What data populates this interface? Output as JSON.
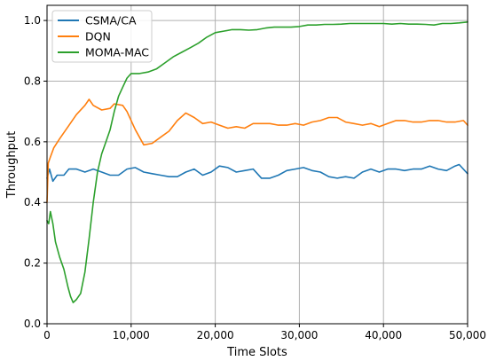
{
  "chart_data": {
    "type": "line",
    "xlabel": "Time Slots",
    "ylabel": "Throughput",
    "xlim": [
      0,
      50000
    ],
    "ylim": [
      0,
      1.05
    ],
    "xticks": [
      0,
      10000,
      20000,
      30000,
      40000,
      50000
    ],
    "xtick_labels": [
      "0",
      "10,000",
      "20,000",
      "30,000",
      "40,000",
      "50,000"
    ],
    "yticks": [
      0.0,
      0.2,
      0.4,
      0.6,
      0.8,
      1.0
    ],
    "ytick_labels": [
      "0.0",
      "0.2",
      "0.4",
      "0.6",
      "0.8",
      "1.0"
    ],
    "grid": true,
    "legend_position": "top-left",
    "series": [
      {
        "name": "CSMA/CA",
        "color": "#1f77b4",
        "points": [
          [
            0,
            0.48
          ],
          [
            300,
            0.51
          ],
          [
            700,
            0.47
          ],
          [
            1200,
            0.49
          ],
          [
            2000,
            0.49
          ],
          [
            2600,
            0.51
          ],
          [
            3500,
            0.51
          ],
          [
            4500,
            0.5
          ],
          [
            5500,
            0.51
          ],
          [
            6500,
            0.5
          ],
          [
            7500,
            0.49
          ],
          [
            8500,
            0.49
          ],
          [
            9500,
            0.51
          ],
          [
            10500,
            0.515
          ],
          [
            11500,
            0.5
          ],
          [
            12500,
            0.495
          ],
          [
            13500,
            0.49
          ],
          [
            14500,
            0.485
          ],
          [
            15500,
            0.485
          ],
          [
            16500,
            0.5
          ],
          [
            17500,
            0.51
          ],
          [
            18500,
            0.49
          ],
          [
            19500,
            0.5
          ],
          [
            20500,
            0.52
          ],
          [
            21500,
            0.515
          ],
          [
            22500,
            0.5
          ],
          [
            23500,
            0.505
          ],
          [
            24500,
            0.51
          ],
          [
            25500,
            0.48
          ],
          [
            26500,
            0.48
          ],
          [
            27500,
            0.49
          ],
          [
            28500,
            0.505
          ],
          [
            29500,
            0.51
          ],
          [
            30500,
            0.515
          ],
          [
            31500,
            0.505
          ],
          [
            32500,
            0.5
          ],
          [
            33500,
            0.485
          ],
          [
            34500,
            0.48
          ],
          [
            35500,
            0.485
          ],
          [
            36500,
            0.48
          ],
          [
            37500,
            0.5
          ],
          [
            38500,
            0.51
          ],
          [
            39500,
            0.5
          ],
          [
            40500,
            0.51
          ],
          [
            41500,
            0.51
          ],
          [
            42500,
            0.505
          ],
          [
            43500,
            0.51
          ],
          [
            44500,
            0.51
          ],
          [
            45500,
            0.52
          ],
          [
            46500,
            0.51
          ],
          [
            47500,
            0.505
          ],
          [
            48500,
            0.52
          ],
          [
            49000,
            0.525
          ],
          [
            50000,
            0.495
          ]
        ]
      },
      {
        "name": "DQN",
        "color": "#ff7f0e",
        "points": [
          [
            0,
            0.4
          ],
          [
            150,
            0.53
          ],
          [
            400,
            0.55
          ],
          [
            800,
            0.58
          ],
          [
            1500,
            0.61
          ],
          [
            2500,
            0.65
          ],
          [
            3500,
            0.69
          ],
          [
            4500,
            0.72
          ],
          [
            5000,
            0.74
          ],
          [
            5500,
            0.72
          ],
          [
            6500,
            0.705
          ],
          [
            7500,
            0.71
          ],
          [
            8000,
            0.725
          ],
          [
            9000,
            0.72
          ],
          [
            9500,
            0.7
          ],
          [
            10500,
            0.64
          ],
          [
            11500,
            0.59
          ],
          [
            12500,
            0.595
          ],
          [
            13500,
            0.615
          ],
          [
            14500,
            0.635
          ],
          [
            15500,
            0.67
          ],
          [
            16500,
            0.695
          ],
          [
            17500,
            0.68
          ],
          [
            18500,
            0.66
          ],
          [
            19500,
            0.665
          ],
          [
            20500,
            0.655
          ],
          [
            21500,
            0.645
          ],
          [
            22500,
            0.65
          ],
          [
            23500,
            0.645
          ],
          [
            24500,
            0.66
          ],
          [
            25500,
            0.66
          ],
          [
            26500,
            0.66
          ],
          [
            27500,
            0.655
          ],
          [
            28500,
            0.655
          ],
          [
            29500,
            0.66
          ],
          [
            30500,
            0.655
          ],
          [
            31500,
            0.665
          ],
          [
            32500,
            0.67
          ],
          [
            33500,
            0.68
          ],
          [
            34500,
            0.68
          ],
          [
            35500,
            0.665
          ],
          [
            36500,
            0.66
          ],
          [
            37500,
            0.655
          ],
          [
            38500,
            0.66
          ],
          [
            39500,
            0.65
          ],
          [
            40500,
            0.66
          ],
          [
            41500,
            0.67
          ],
          [
            42500,
            0.67
          ],
          [
            43500,
            0.665
          ],
          [
            44500,
            0.665
          ],
          [
            45500,
            0.67
          ],
          [
            46500,
            0.67
          ],
          [
            47500,
            0.665
          ],
          [
            48500,
            0.665
          ],
          [
            49500,
            0.67
          ],
          [
            50000,
            0.655
          ]
        ]
      },
      {
        "name": "MOMA-MAC",
        "color": "#2ca02c",
        "points": [
          [
            0,
            0.34
          ],
          [
            200,
            0.33
          ],
          [
            400,
            0.37
          ],
          [
            700,
            0.33
          ],
          [
            1000,
            0.27
          ],
          [
            1500,
            0.22
          ],
          [
            2000,
            0.18
          ],
          [
            2500,
            0.12
          ],
          [
            2800,
            0.09
          ],
          [
            3100,
            0.07
          ],
          [
            3500,
            0.08
          ],
          [
            4000,
            0.1
          ],
          [
            4500,
            0.17
          ],
          [
            5000,
            0.28
          ],
          [
            5500,
            0.4
          ],
          [
            6000,
            0.5
          ],
          [
            6500,
            0.56
          ],
          [
            7000,
            0.6
          ],
          [
            7500,
            0.64
          ],
          [
            8000,
            0.7
          ],
          [
            8500,
            0.75
          ],
          [
            9000,
            0.78
          ],
          [
            9500,
            0.81
          ],
          [
            10000,
            0.825
          ],
          [
            11000,
            0.825
          ],
          [
            12000,
            0.83
          ],
          [
            13000,
            0.84
          ],
          [
            14000,
            0.86
          ],
          [
            15000,
            0.88
          ],
          [
            16000,
            0.895
          ],
          [
            17000,
            0.91
          ],
          [
            18000,
            0.925
          ],
          [
            19000,
            0.945
          ],
          [
            20000,
            0.96
          ],
          [
            21000,
            0.965
          ],
          [
            22000,
            0.97
          ],
          [
            23000,
            0.97
          ],
          [
            24000,
            0.968
          ],
          [
            25000,
            0.97
          ],
          [
            26000,
            0.975
          ],
          [
            27000,
            0.978
          ],
          [
            28000,
            0.978
          ],
          [
            29000,
            0.978
          ],
          [
            30000,
            0.98
          ],
          [
            31000,
            0.985
          ],
          [
            32000,
            0.985
          ],
          [
            33000,
            0.987
          ],
          [
            34000,
            0.987
          ],
          [
            35000,
            0.988
          ],
          [
            36000,
            0.99
          ],
          [
            37000,
            0.99
          ],
          [
            38000,
            0.99
          ],
          [
            39000,
            0.99
          ],
          [
            40000,
            0.99
          ],
          [
            41000,
            0.988
          ],
          [
            42000,
            0.99
          ],
          [
            43000,
            0.988
          ],
          [
            44000,
            0.988
          ],
          [
            45000,
            0.987
          ],
          [
            46000,
            0.985
          ],
          [
            47000,
            0.99
          ],
          [
            48000,
            0.99
          ],
          [
            49000,
            0.992
          ],
          [
            50000,
            0.995
          ]
        ]
      }
    ]
  }
}
